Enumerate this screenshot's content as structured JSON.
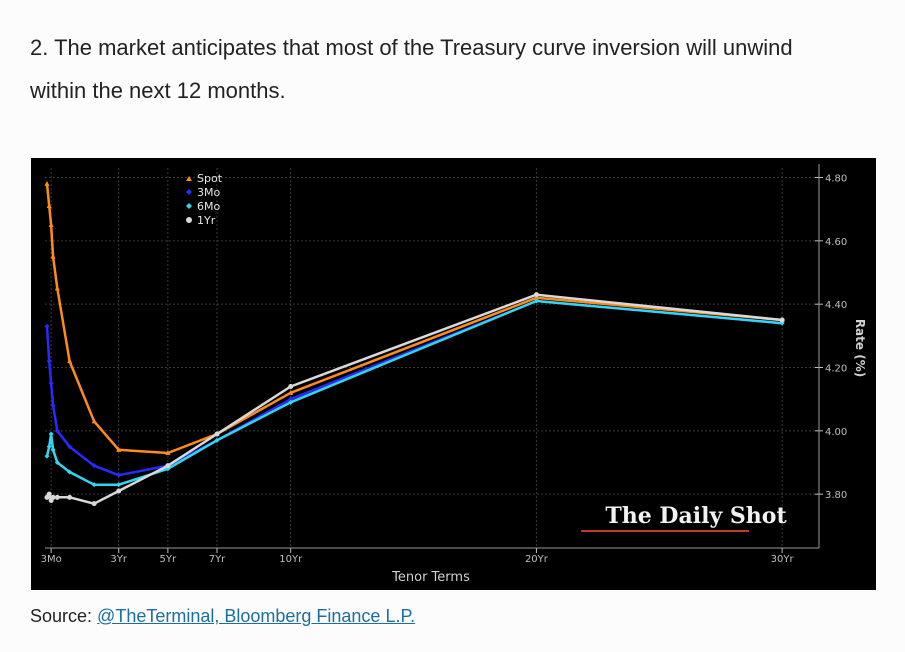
{
  "heading": {
    "line1": "2. The market anticipates that most of the Treasury curve inversion will unwind",
    "line2": "within the next 12 months."
  },
  "source": {
    "prefix": "Source: ",
    "link_text": "@TheTerminal, Bloomberg Finance L.P."
  },
  "watermark": "The Daily Shot",
  "chart_data": {
    "type": "line",
    "xlabel": "Tenor Terms",
    "ylabel": "Rate (%)",
    "x_ticks": [
      {
        "label": "3Mo",
        "value": 0.25
      },
      {
        "label": "3Yr",
        "value": 3
      },
      {
        "label": "5Yr",
        "value": 5
      },
      {
        "label": "7Yr",
        "value": 7
      },
      {
        "label": "10Yr",
        "value": 10
      },
      {
        "label": "20Yr",
        "value": 20
      },
      {
        "label": "30Yr",
        "value": 30
      }
    ],
    "y_ticks": [
      3.8,
      4.0,
      4.2,
      4.4,
      4.6,
      4.8
    ],
    "y_tick_labels": [
      "3.80",
      "4.00",
      "4.20",
      "4.40",
      "4.60",
      "4.80"
    ],
    "xlim": [
      0,
      31.5
    ],
    "ylim": [
      3.63,
      4.83
    ],
    "legend_position": "top-left",
    "grid": true,
    "series": [
      {
        "name": "Spot",
        "color": "#ff8c1a",
        "marker": "triangle",
        "x": [
          0.08,
          0.17,
          0.25,
          0.33,
          0.5,
          1,
          2,
          3,
          5,
          7,
          10,
          20,
          30
        ],
        "y": [
          4.78,
          4.71,
          4.65,
          4.55,
          4.45,
          4.22,
          4.03,
          3.94,
          3.93,
          3.99,
          4.12,
          4.42,
          4.35
        ]
      },
      {
        "name": "3Mo",
        "color": "#2a2aff",
        "marker": "diamond",
        "x": [
          0.08,
          0.17,
          0.25,
          0.33,
          0.5,
          1,
          2,
          3,
          5,
          7,
          10,
          20,
          30
        ],
        "y": [
          4.33,
          4.22,
          4.15,
          4.08,
          4.0,
          3.95,
          3.89,
          3.86,
          3.89,
          3.97,
          4.1,
          4.41,
          4.34
        ]
      },
      {
        "name": "6Mo",
        "color": "#33d6f0",
        "marker": "diamond",
        "x": [
          0.08,
          0.17,
          0.25,
          0.33,
          0.5,
          1,
          2,
          3,
          5,
          7,
          10,
          20,
          30
        ],
        "y": [
          3.92,
          3.95,
          3.99,
          3.94,
          3.9,
          3.87,
          3.83,
          3.83,
          3.88,
          3.97,
          4.09,
          4.41,
          4.34
        ]
      },
      {
        "name": "1Yr",
        "color": "#d9d9d9",
        "marker": "circle",
        "x": [
          0.08,
          0.17,
          0.25,
          0.33,
          0.5,
          1,
          2,
          3,
          5,
          7,
          10,
          20,
          30
        ],
        "y": [
          3.79,
          3.8,
          3.78,
          3.79,
          3.79,
          3.79,
          3.77,
          3.81,
          3.89,
          3.99,
          4.14,
          4.43,
          4.35
        ]
      }
    ]
  }
}
